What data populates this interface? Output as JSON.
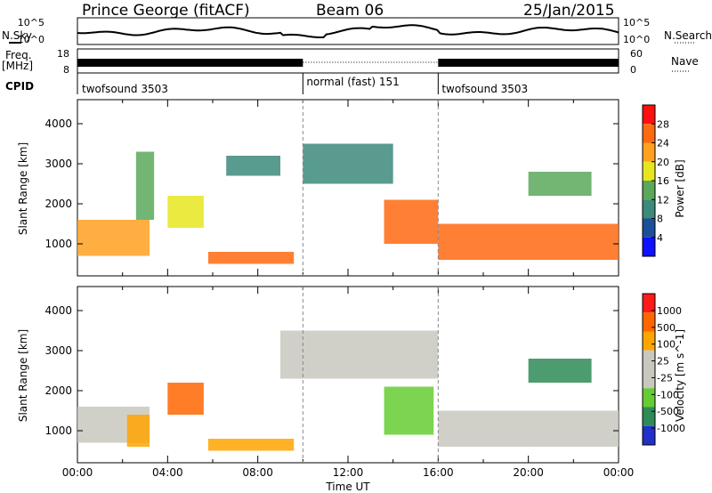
{
  "header": {
    "station": "Prince George (fitACF)",
    "beam": "Beam 06",
    "date": "25/Jan/2015"
  },
  "side_labels": {
    "nsky": "N.Sky",
    "freq_top": "Freq.",
    "freq_unit": "[MHz]",
    "cpid": "CPID",
    "nsearch": "N.Search",
    "nave": "Nave"
  },
  "noise_panel": {
    "left_ticks": [
      "10^5",
      "10^0"
    ],
    "right_ticks": [
      "10^5",
      "10^0"
    ]
  },
  "freq_panel": {
    "left_ticks": [
      "18",
      "8"
    ],
    "right_ticks": [
      "60",
      "0"
    ]
  },
  "cpid_segments": [
    {
      "label": "twofsound 3503",
      "start_h": 0,
      "end_h": 10
    },
    {
      "label": "normal (fast) 151",
      "start_h": 10,
      "end_h": 16
    },
    {
      "label": "twofsound 3503",
      "start_h": 16,
      "end_h": 24
    }
  ],
  "colors": {
    "power_scale": [
      "#1010ff",
      "#1b4f9a",
      "#3c8a7a",
      "#5aa85a",
      "#e6e61e",
      "#ffa020",
      "#ff6a10",
      "#ff1010"
    ],
    "velocity_scale": [
      "#2030c8",
      "#2e8b57",
      "#66cc33",
      "#c8c8c0",
      "#c8c8c0",
      "#ffa500",
      "#ff6600",
      "#ff1a1a"
    ]
  },
  "chart_data": [
    {
      "type": "heatmap",
      "name_ref": "power",
      "ylabel": "Slant Range [km]",
      "yticks": [
        1000,
        2000,
        3000,
        4000
      ],
      "ylim": [
        200,
        4600
      ],
      "xlim": [
        0,
        24
      ],
      "colorbar_label": "Power [dB]",
      "colorbar_ticks": [
        "28",
        "24",
        "20",
        "16",
        "12",
        "8",
        "4"
      ],
      "regions": [
        {
          "start_h": 0.0,
          "end_h": 3.2,
          "r_low": 700,
          "r_high": 1600,
          "level": 5
        },
        {
          "start_h": 2.6,
          "end_h": 3.4,
          "r_low": 1600,
          "r_high": 3300,
          "level": 3
        },
        {
          "start_h": 4.0,
          "end_h": 5.6,
          "r_low": 1400,
          "r_high": 2200,
          "level": 4
        },
        {
          "start_h": 5.8,
          "end_h": 9.6,
          "r_low": 500,
          "r_high": 800,
          "level": 6
        },
        {
          "start_h": 6.6,
          "end_h": 9.0,
          "r_low": 2700,
          "r_high": 3200,
          "level": 2
        },
        {
          "start_h": 10.0,
          "end_h": 14.0,
          "r_low": 2500,
          "r_high": 3500,
          "level": 2
        },
        {
          "start_h": 13.6,
          "end_h": 16.0,
          "r_low": 1000,
          "r_high": 2100,
          "level": 6
        },
        {
          "start_h": 16.0,
          "end_h": 24.0,
          "r_low": 600,
          "r_high": 1500,
          "level": 6
        },
        {
          "start_h": 20.0,
          "end_h": 22.8,
          "r_low": 2200,
          "r_high": 2800,
          "level": 3
        }
      ]
    },
    {
      "type": "heatmap",
      "name_ref": "velocity",
      "ylabel": "Slant Range [km]",
      "yticks": [
        1000,
        2000,
        3000,
        4000
      ],
      "ylim": [
        200,
        4600
      ],
      "xlim": [
        0,
        24
      ],
      "xticks": [
        "00:00",
        "04:00",
        "08:00",
        "12:00",
        "16:00",
        "20:00",
        "00:00"
      ],
      "xlabel": "Time UT",
      "colorbar_label": "Velocity [m s^-1]",
      "colorbar_ticks": [
        "1000",
        "500",
        "100",
        "25",
        "-25",
        "-100",
        "-500",
        "-1000"
      ],
      "regions": [
        {
          "start_h": 0.0,
          "end_h": 3.2,
          "r_low": 700,
          "r_high": 1600,
          "level": 4
        },
        {
          "start_h": 2.2,
          "end_h": 3.2,
          "r_low": 600,
          "r_high": 1400,
          "level": 5
        },
        {
          "start_h": 4.0,
          "end_h": 5.6,
          "r_low": 1400,
          "r_high": 2200,
          "level": 6
        },
        {
          "start_h": 5.8,
          "end_h": 9.6,
          "r_low": 500,
          "r_high": 800,
          "level": 5
        },
        {
          "start_h": 9.0,
          "end_h": 16.0,
          "r_low": 2300,
          "r_high": 3500,
          "level": 3
        },
        {
          "start_h": 13.6,
          "end_h": 15.8,
          "r_low": 900,
          "r_high": 2100,
          "level": 2
        },
        {
          "start_h": 16.0,
          "end_h": 24.0,
          "r_low": 600,
          "r_high": 1500,
          "level": 3
        },
        {
          "start_h": 20.0,
          "end_h": 22.8,
          "r_low": 2200,
          "r_high": 2800,
          "level": 1
        }
      ]
    }
  ]
}
